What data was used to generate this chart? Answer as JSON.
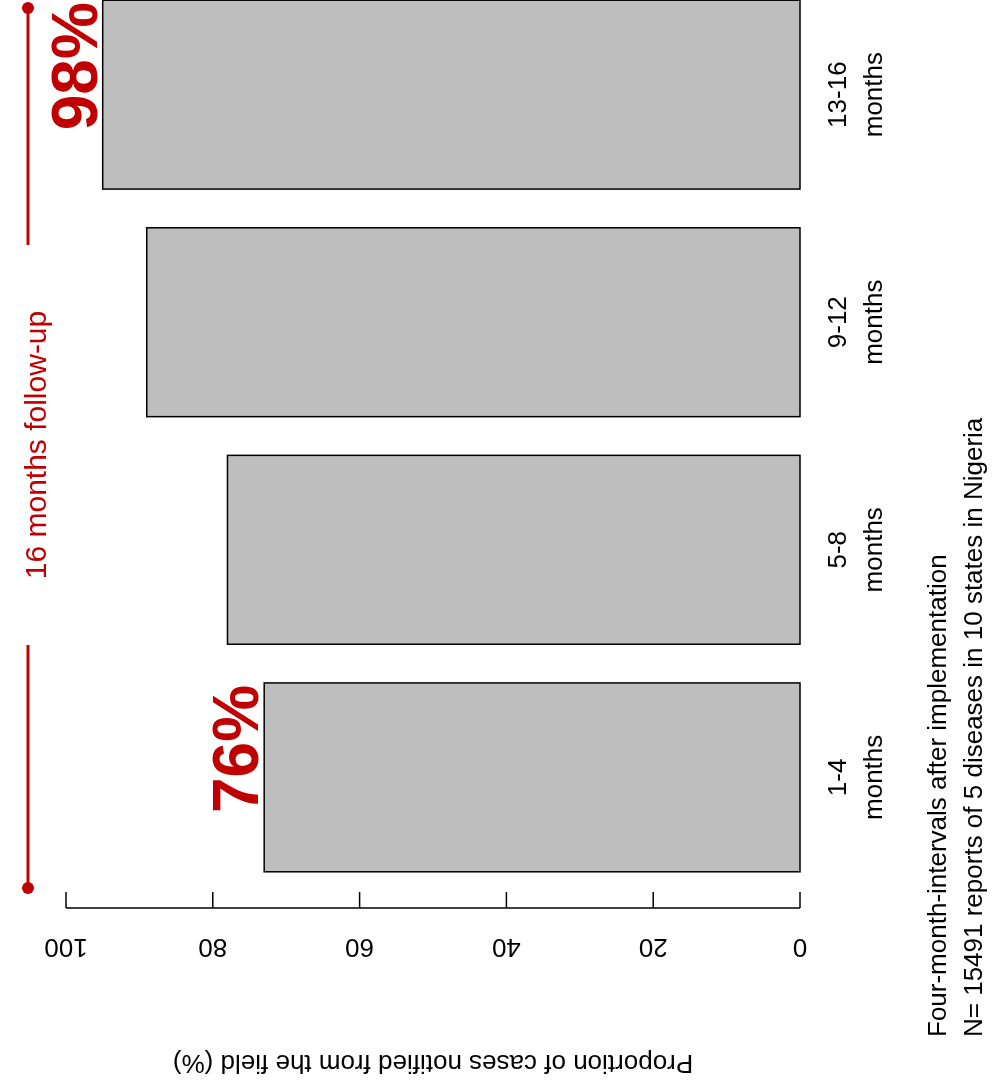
{
  "chart_data": {
    "type": "bar",
    "orientation": "horizontal",
    "categories": [
      "13-16 months",
      "9-12 months",
      "5-8 months",
      "1-4 months"
    ],
    "values": [
      95,
      89,
      78,
      73
    ],
    "color": "#bebebe",
    "xlim": [
      100,
      0
    ],
    "xticks": [
      0,
      20,
      40,
      60,
      80,
      100
    ],
    "xlabel": "Proportion of cases notified from the field (%)",
    "ylabel": "Four-month-intervals after implementation",
    "annotations": [
      {
        "text": "98%",
        "x": 95,
        "y": "13-16 months"
      },
      {
        "text": "76%",
        "x": 73,
        "y": "1-4 months"
      },
      "16 months follow-up",
      "N= 15491 reports of 5 diseases in 10 states in Nigeria"
    ],
    "grid": false
  }
}
